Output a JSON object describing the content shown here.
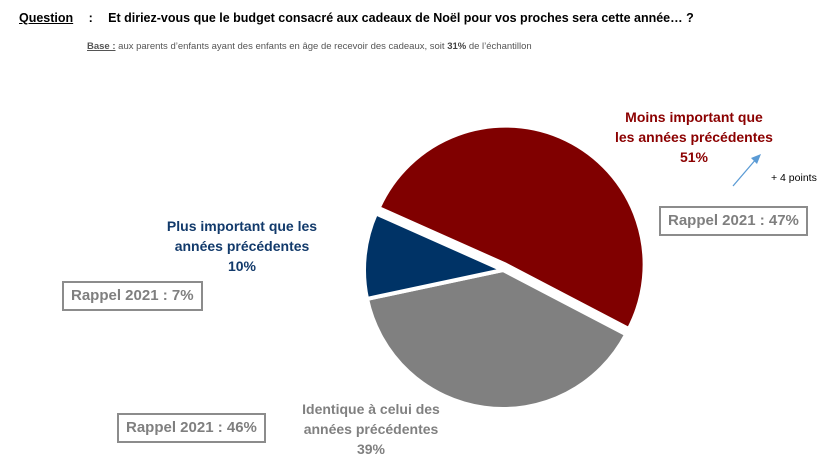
{
  "header": {
    "question_label": "Question",
    "question_separator": ":",
    "question_text": "Et diriez-vous que le budget consacré aux cadeaux de Noël pour vos proches sera cette année… ?",
    "base_label": "Base :",
    "base_text_1": " aux parents d’enfants ayant des enfants en âge de recevoir des cadeaux, soit ",
    "base_highlight": "31%",
    "base_text_2": " de l’échantillon"
  },
  "colors": {
    "red": "#800000",
    "blue": "#003366",
    "gray": "#808080",
    "arrow": "#5b9bd5"
  },
  "chart_data": {
    "type": "pie",
    "title": "Et diriez-vous que le budget consacré aux cadeaux de Noël pour vos proches sera cette année… ?",
    "slices": [
      {
        "label_line1": "Moins important que",
        "label_line2": "les années précédentes",
        "value": 51,
        "value_text": "51%",
        "color": "#800000",
        "rappel": "Rappel 2021 : 47%",
        "exploded": true
      },
      {
        "label_line1": "Identique à celui des",
        "label_line2": "années précédentes",
        "value": 39,
        "value_text": "39%",
        "color": "#808080",
        "rappel": "Rappel 2021 : 46%",
        "exploded": false
      },
      {
        "label_line1": "Plus important que les",
        "label_line2": "années précédentes",
        "value": 10,
        "value_text": "10%",
        "color": "#003366",
        "rappel": "Rappel 2021 : 7%",
        "exploded": false
      }
    ],
    "annotation": {
      "text": "+ 4 points",
      "direction": "up",
      "applies_to": "Moins important que les années précédentes"
    }
  }
}
